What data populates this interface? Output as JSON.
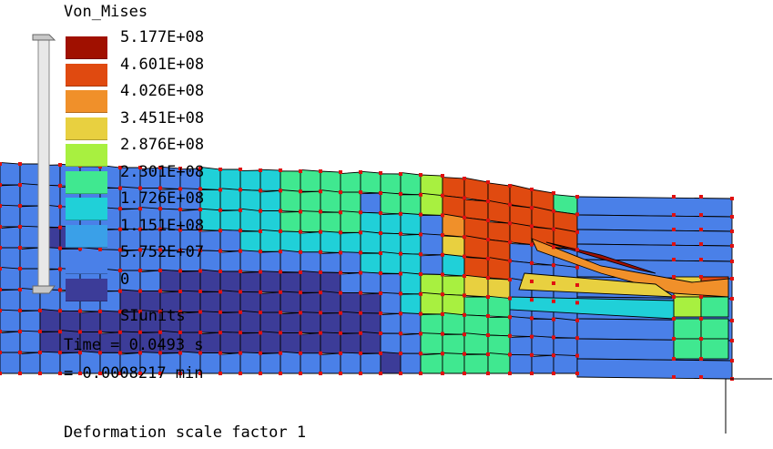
{
  "legend": {
    "title": "Von_Mises",
    "levels": [
      {
        "label": "5.177E+08",
        "color": "#a01000"
      },
      {
        "label": "4.601E+08",
        "color": "#e04a10"
      },
      {
        "label": "4.026E+08",
        "color": "#f0902a"
      },
      {
        "label": "3.451E+08",
        "color": "#e8d040"
      },
      {
        "label": "2.876E+08",
        "color": "#a8f040"
      },
      {
        "label": "2.301E+08",
        "color": "#40e890"
      },
      {
        "label": "1.726E+08",
        "color": "#20d0d8"
      },
      {
        "label": "1.151E+08",
        "color": "#3aa0e8"
      },
      {
        "label": "5.752E+07",
        "color": "#4a80e8"
      },
      {
        "label": "0",
        "color": "#3c3c98"
      }
    ],
    "units": "SIunits"
  },
  "time": {
    "seconds_line": "Time = 0.0493 s",
    "minutes_line": "= 0.0008217 min"
  },
  "footer": {
    "deformation": "Deformation scale factor 1"
  },
  "colors": {
    "mesh_edge": "#000000",
    "node": "#e01010",
    "background": "#ffffff"
  }
}
